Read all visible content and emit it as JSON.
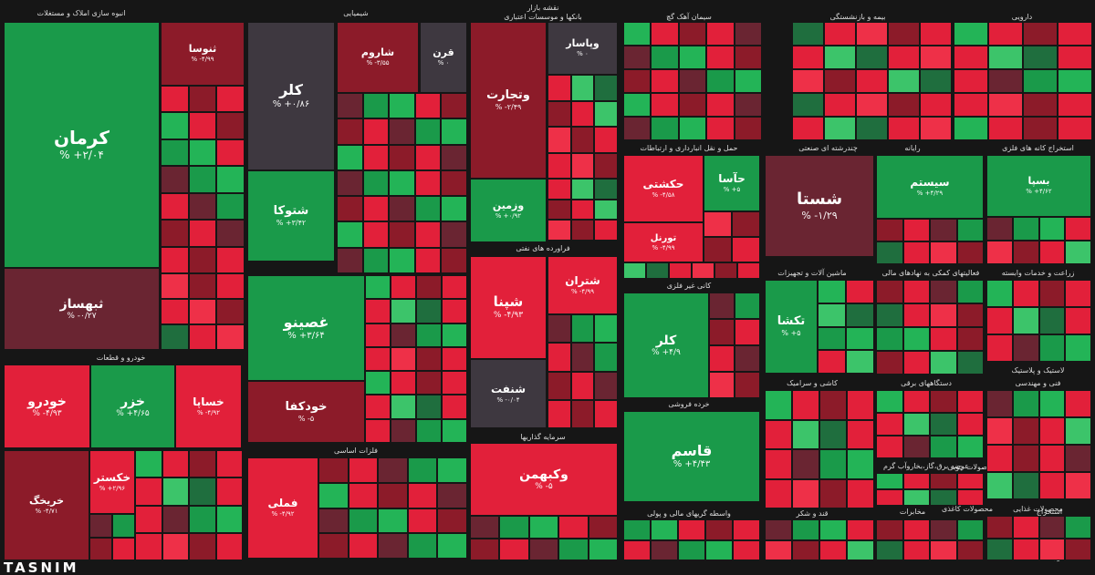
{
  "colors": {
    "strong_green": "#1a9a4a",
    "green": "#23b457",
    "light_green": "#3cc46a",
    "dark_green": "#1f6e3e",
    "red": "#e2203a",
    "light_red": "#ee3048",
    "dark_red": "#8c1b29",
    "maroon": "#6a2532",
    "neutral": "#3e3840",
    "background": "#161616"
  },
  "logo_text": "TASNIM",
  "sectors": [
    "انبوه سازی املاک و مستغلات",
    "شیمیایی",
    "بانکها و موسسات اعتباری",
    "سیمان آهک گچ",
    "بیمه و بازنشستگی",
    "دارویی",
    "خودرو و قطعات",
    "فلزات اساسی",
    "سرمایه گذاریها",
    "حمل و نقل انبارداری و ارتباطات",
    "چندرشته ای صنعتی",
    "رایانه",
    "استخراج کانه های فلزی",
    "فراورده های نفتی",
    "کانی غیر فلزی",
    "ماشین آلات و تجهیزات",
    "فعالیتهای کمکی به نهادهای مالی",
    "زراعت و خدمات وابسته",
    "خرده فروشی",
    "کاشی و سرامیک",
    "دستگاههای برقی",
    "فنی و مهندسی",
    "لاستیک و پلاستیک",
    "محصولات چوبی",
    "عرضه برق،گاز،بخاروآب گرم",
    "واسطه گریهای مالی و پولی",
    "قند و شکر",
    "محصولات غذایی",
    "استخراج",
    "منسوجات",
    "مخابرات",
    "وسایل ارتباطی",
    "نقشه بازار",
    "محصولات کاغذی"
  ],
  "tiles": [
    {
      "name": "کرمان",
      "change": "% +۲/۰۴"
    },
    {
      "name": "ثبهساز",
      "change": "% -۰/۲۷"
    },
    {
      "name": "ثنوسا",
      "change": "% -۴/۹۹"
    },
    {
      "name": "کلر",
      "change": "% +۰/۸۶"
    },
    {
      "name": "شتوکا",
      "change": "% +۳/۴۲"
    },
    {
      "name": "شاروم",
      "change": "% -۳/۵۵"
    },
    {
      "name": "قرن",
      "change": "% ۰"
    },
    {
      "name": "وتجارت",
      "change": "% -۲/۴۹"
    },
    {
      "name": "وپاسار",
      "change": "% ۰"
    },
    {
      "name": "وزمین",
      "change": "% +۰/۹۲"
    },
    {
      "name": "حکشتی",
      "change": "% -۴/۵۸"
    },
    {
      "name": "حآسا",
      "change": "% +۵"
    },
    {
      "name": "تورنل",
      "change": "% -۴/۹۹"
    },
    {
      "name": "شستا",
      "change": "% -۱/۲۹"
    },
    {
      "name": "سیستم",
      "change": "% +۴/۲۹"
    },
    {
      "name": "بسپا",
      "change": "% +۴/۶۲"
    },
    {
      "name": "غصینو",
      "change": "% +۳/۶۴"
    },
    {
      "name": "خودکفا",
      "change": "% -۵"
    },
    {
      "name": "شپنا",
      "change": "% -۴/۹۳"
    },
    {
      "name": "شتران",
      "change": "% -۴/۹۹"
    },
    {
      "name": "شنفت",
      "change": "% -۰/۰۴"
    },
    {
      "name": "کلر",
      "change": "% +۴/۹"
    },
    {
      "name": "تکشا",
      "change": "% +۵"
    },
    {
      "name": "خودرو",
      "change": "% -۴/۹۳"
    },
    {
      "name": "خزر",
      "change": "% +۴/۶۵"
    },
    {
      "name": "خساپا",
      "change": "% -۴/۹۲"
    },
    {
      "name": "خریخگ",
      "change": "% -۴/۷۱"
    },
    {
      "name": "خکستر",
      "change": "% +۲/۹۶"
    },
    {
      "name": "فملی",
      "change": "% -۴/۹۲"
    },
    {
      "name": "وکبهمن",
      "change": "% -۵"
    },
    {
      "name": "قاسم",
      "change": "% +۴/۴۳"
    }
  ]
}
